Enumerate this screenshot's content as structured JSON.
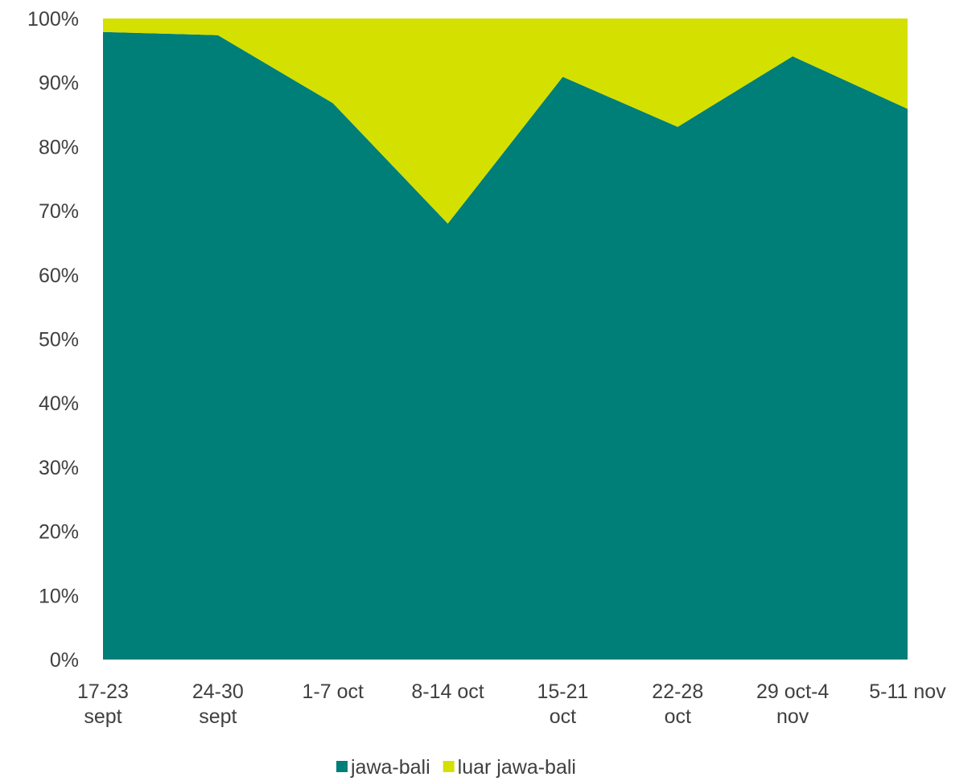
{
  "chart_data": {
    "type": "area",
    "stacked": true,
    "percent_stacked": true,
    "categories": [
      [
        "17-23",
        "sept"
      ],
      [
        "24-30",
        "sept"
      ],
      [
        "1-7 oct"
      ],
      [
        "8-14 oct"
      ],
      [
        "15-21",
        "oct"
      ],
      [
        "22-28",
        "oct"
      ],
      [
        "29 oct-4",
        "nov"
      ],
      [
        "5-11 nov"
      ]
    ],
    "series": [
      {
        "name": "jawa-bali",
        "color": "#007e78",
        "values": [
          97.9,
          97.4,
          86.8,
          68.0,
          90.9,
          83.1,
          94.1,
          85.9
        ]
      },
      {
        "name": "luar jawa-bali",
        "color": "#d4e000",
        "values": [
          2.1,
          2.6,
          13.2,
          32.0,
          9.1,
          16.9,
          5.9,
          14.1
        ]
      }
    ],
    "ylim": [
      0,
      100
    ],
    "yticks": [
      "0%",
      "10%",
      "20%",
      "30%",
      "40%",
      "50%",
      "60%",
      "70%",
      "80%",
      "90%",
      "100%"
    ],
    "grid": false,
    "legend": "bottom"
  }
}
